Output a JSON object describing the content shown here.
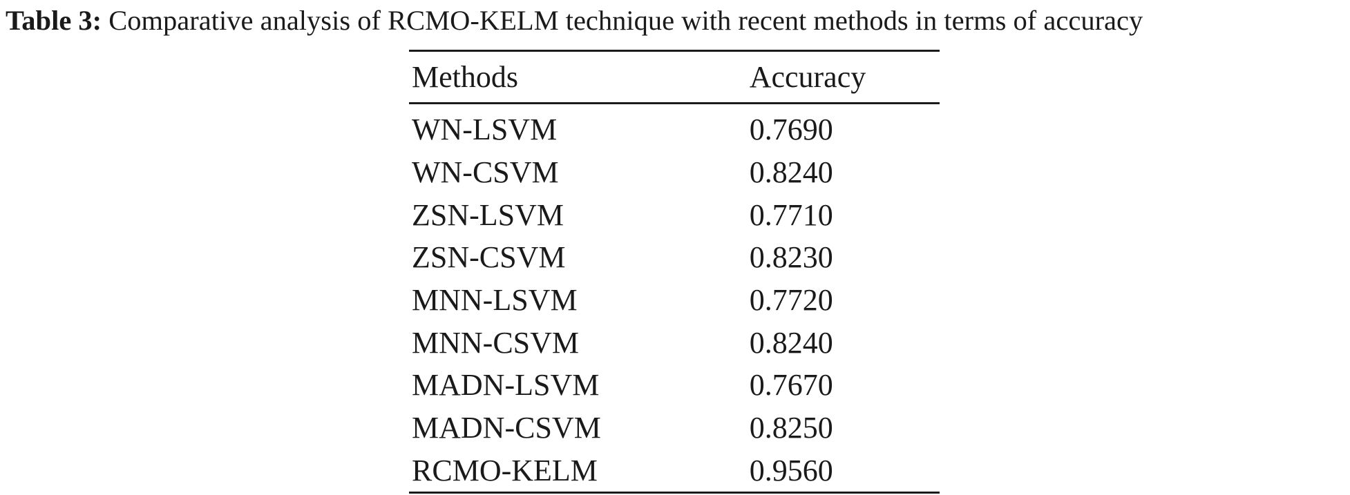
{
  "caption": {
    "label": "Table 3:",
    "text": " Comparative analysis of RCMO-KELM technique with recent methods in terms of accuracy"
  },
  "table": {
    "headers": [
      "Methods",
      "Accuracy"
    ],
    "rows": [
      [
        "WN-LSVM",
        "0.7690"
      ],
      [
        "WN-CSVM",
        "0.8240"
      ],
      [
        "ZSN-LSVM",
        "0.7710"
      ],
      [
        "ZSN-CSVM",
        "0.8230"
      ],
      [
        "MNN-LSVM",
        "0.7720"
      ],
      [
        "MNN-CSVM",
        "0.8240"
      ],
      [
        "MADN-LSVM",
        "0.7670"
      ],
      [
        "MADN-CSVM",
        "0.8250"
      ],
      [
        "RCMO-KELM",
        "0.9560"
      ]
    ]
  }
}
